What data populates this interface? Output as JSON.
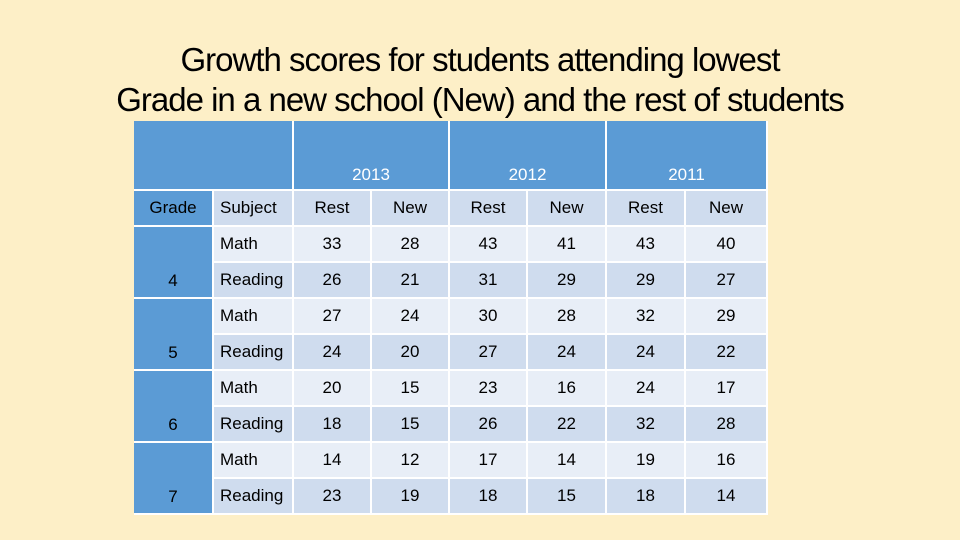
{
  "title": {
    "line1": "Growth scores for students attending lowest",
    "line2": "Grade in a new school (New) and the rest of students"
  },
  "table": {
    "years": [
      "2013",
      "2012",
      "2011"
    ],
    "col_headers": [
      "Grade",
      "Subject",
      "Rest",
      "New",
      "Rest",
      "New",
      "Rest",
      "New"
    ],
    "groups": [
      {
        "grade": "4",
        "rows": [
          {
            "subject": "Math",
            "values": [
              "33",
              "28",
              "43",
              "41",
              "43",
              "40"
            ]
          },
          {
            "subject": "Reading",
            "values": [
              "26",
              "21",
              "31",
              "29",
              "29",
              "27"
            ]
          }
        ]
      },
      {
        "grade": "5",
        "rows": [
          {
            "subject": "Math",
            "values": [
              "27",
              "24",
              "30",
              "28",
              "32",
              "29"
            ]
          },
          {
            "subject": "Reading",
            "values": [
              "24",
              "20",
              "27",
              "24",
              "24",
              "22"
            ]
          }
        ]
      },
      {
        "grade": "6",
        "rows": [
          {
            "subject": "Math",
            "values": [
              "20",
              "15",
              "23",
              "16",
              "24",
              "17"
            ]
          },
          {
            "subject": "Reading",
            "values": [
              "18",
              "15",
              "26",
              "22",
              "32",
              "28"
            ]
          }
        ]
      },
      {
        "grade": "7",
        "rows": [
          {
            "subject": "Math",
            "values": [
              "14",
              "12",
              "17",
              "14",
              "19",
              "16"
            ]
          },
          {
            "subject": "Reading",
            "values": [
              "23",
              "19",
              "18",
              "15",
              "18",
              "14"
            ]
          }
        ]
      }
    ]
  },
  "colors": {
    "background": "#fdefc7",
    "header_blue": "#5b9bd5",
    "row_dark": "#cfdcee",
    "row_light": "#e8eef7"
  }
}
